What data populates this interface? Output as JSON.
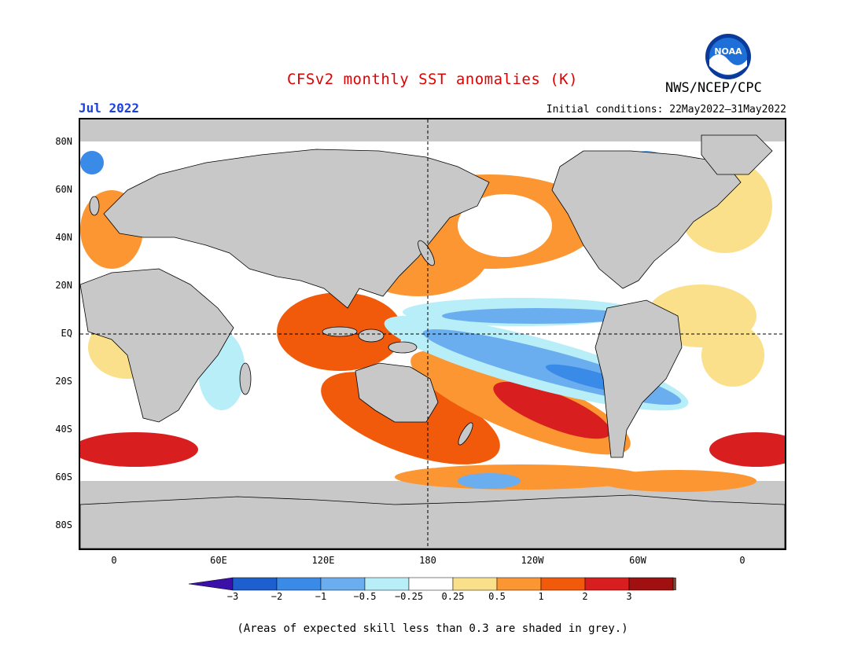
{
  "title": "CFSv2 monthly SST anomalies (K)",
  "valid_month": "Jul 2022",
  "organization": "NWS/NCEP/CPC",
  "logo_text": "NOAA",
  "initial_conditions": "Initial conditions: 22May2022–31May2022",
  "lat_labels": [
    "80N",
    "60N",
    "40N",
    "20N",
    "EQ",
    "20S",
    "40S",
    "60S",
    "80S"
  ],
  "lon_labels": [
    "0",
    "60E",
    "120E",
    "180",
    "120W",
    "60W",
    "0"
  ],
  "colorbar": {
    "tick_labels": [
      "−3",
      "−2",
      "−1",
      "−0.5",
      "−0.25",
      "0.25",
      "0.5",
      "1",
      "2",
      "3"
    ],
    "colors": [
      "#3a10a8",
      "#1e5fd0",
      "#3a8ae8",
      "#6aaef0",
      "#b8eef8",
      "#ffffff",
      "#fae08a",
      "#fb9632",
      "#f05a0a",
      "#d81e1e",
      "#a01010",
      "#7a4a3a"
    ]
  },
  "footnote": "(Areas of expected skill less than 0.3 are shaded in grey.)",
  "colors": {
    "title": "#e00000",
    "month": "#1a3fe0",
    "land": "#c8c8c8",
    "grey_low_skill": "#c8c8c8"
  }
}
